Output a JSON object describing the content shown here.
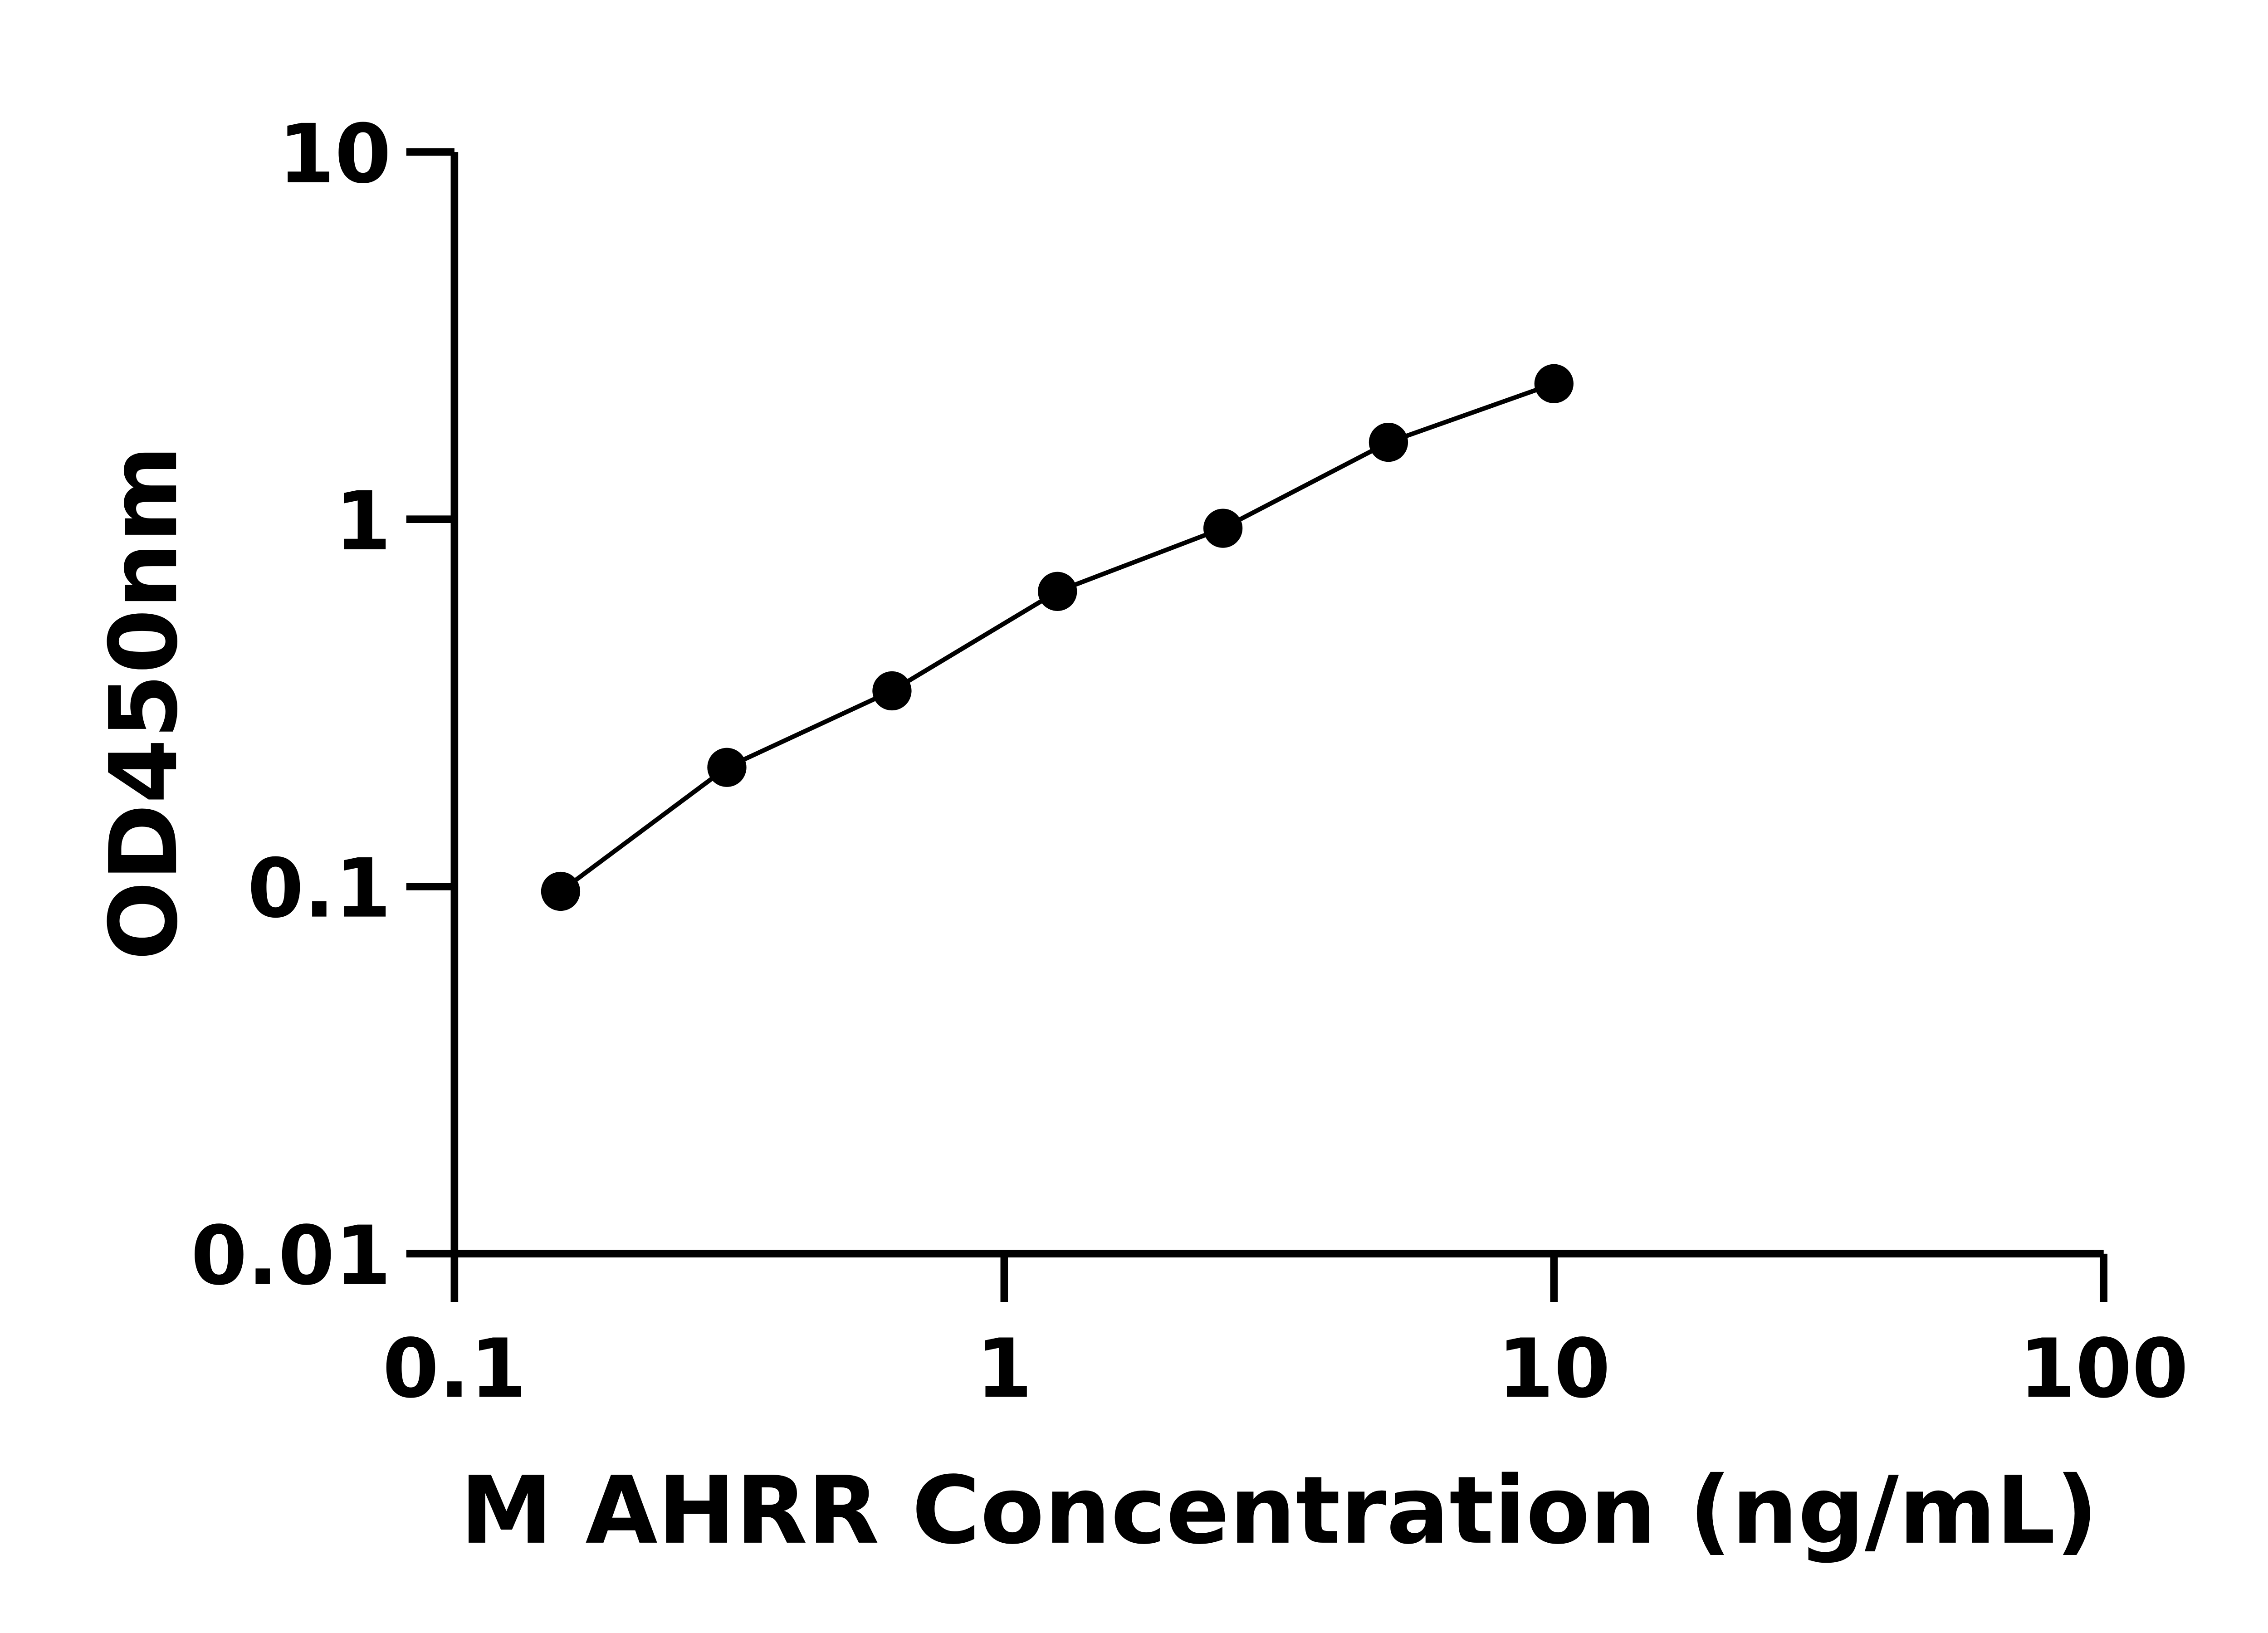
{
  "chart_data": {
    "type": "line",
    "title": "",
    "xlabel": "M AHRR Concentration (ng/mL)",
    "ylabel": "OD450nm",
    "xscale": "log",
    "yscale": "log",
    "xlim": [
      0.1,
      100
    ],
    "ylim": [
      0.01,
      10
    ],
    "xticks": [
      0.1,
      1,
      10,
      100
    ],
    "xtick_labels": [
      "0.1",
      "1",
      "10",
      "100"
    ],
    "yticks": [
      0.01,
      0.1,
      1,
      10
    ],
    "ytick_labels": [
      "0.01",
      "0.1",
      "1",
      "10"
    ],
    "grid": false,
    "legend": "none",
    "series": [
      {
        "x": [
          0.156,
          0.313,
          0.625,
          1.25,
          2.5,
          5,
          10
        ],
        "y": [
          0.097,
          0.211,
          0.341,
          0.636,
          0.945,
          1.62,
          2.34
        ],
        "marker": "filled-circle",
        "color": "#000000"
      }
    ]
  }
}
